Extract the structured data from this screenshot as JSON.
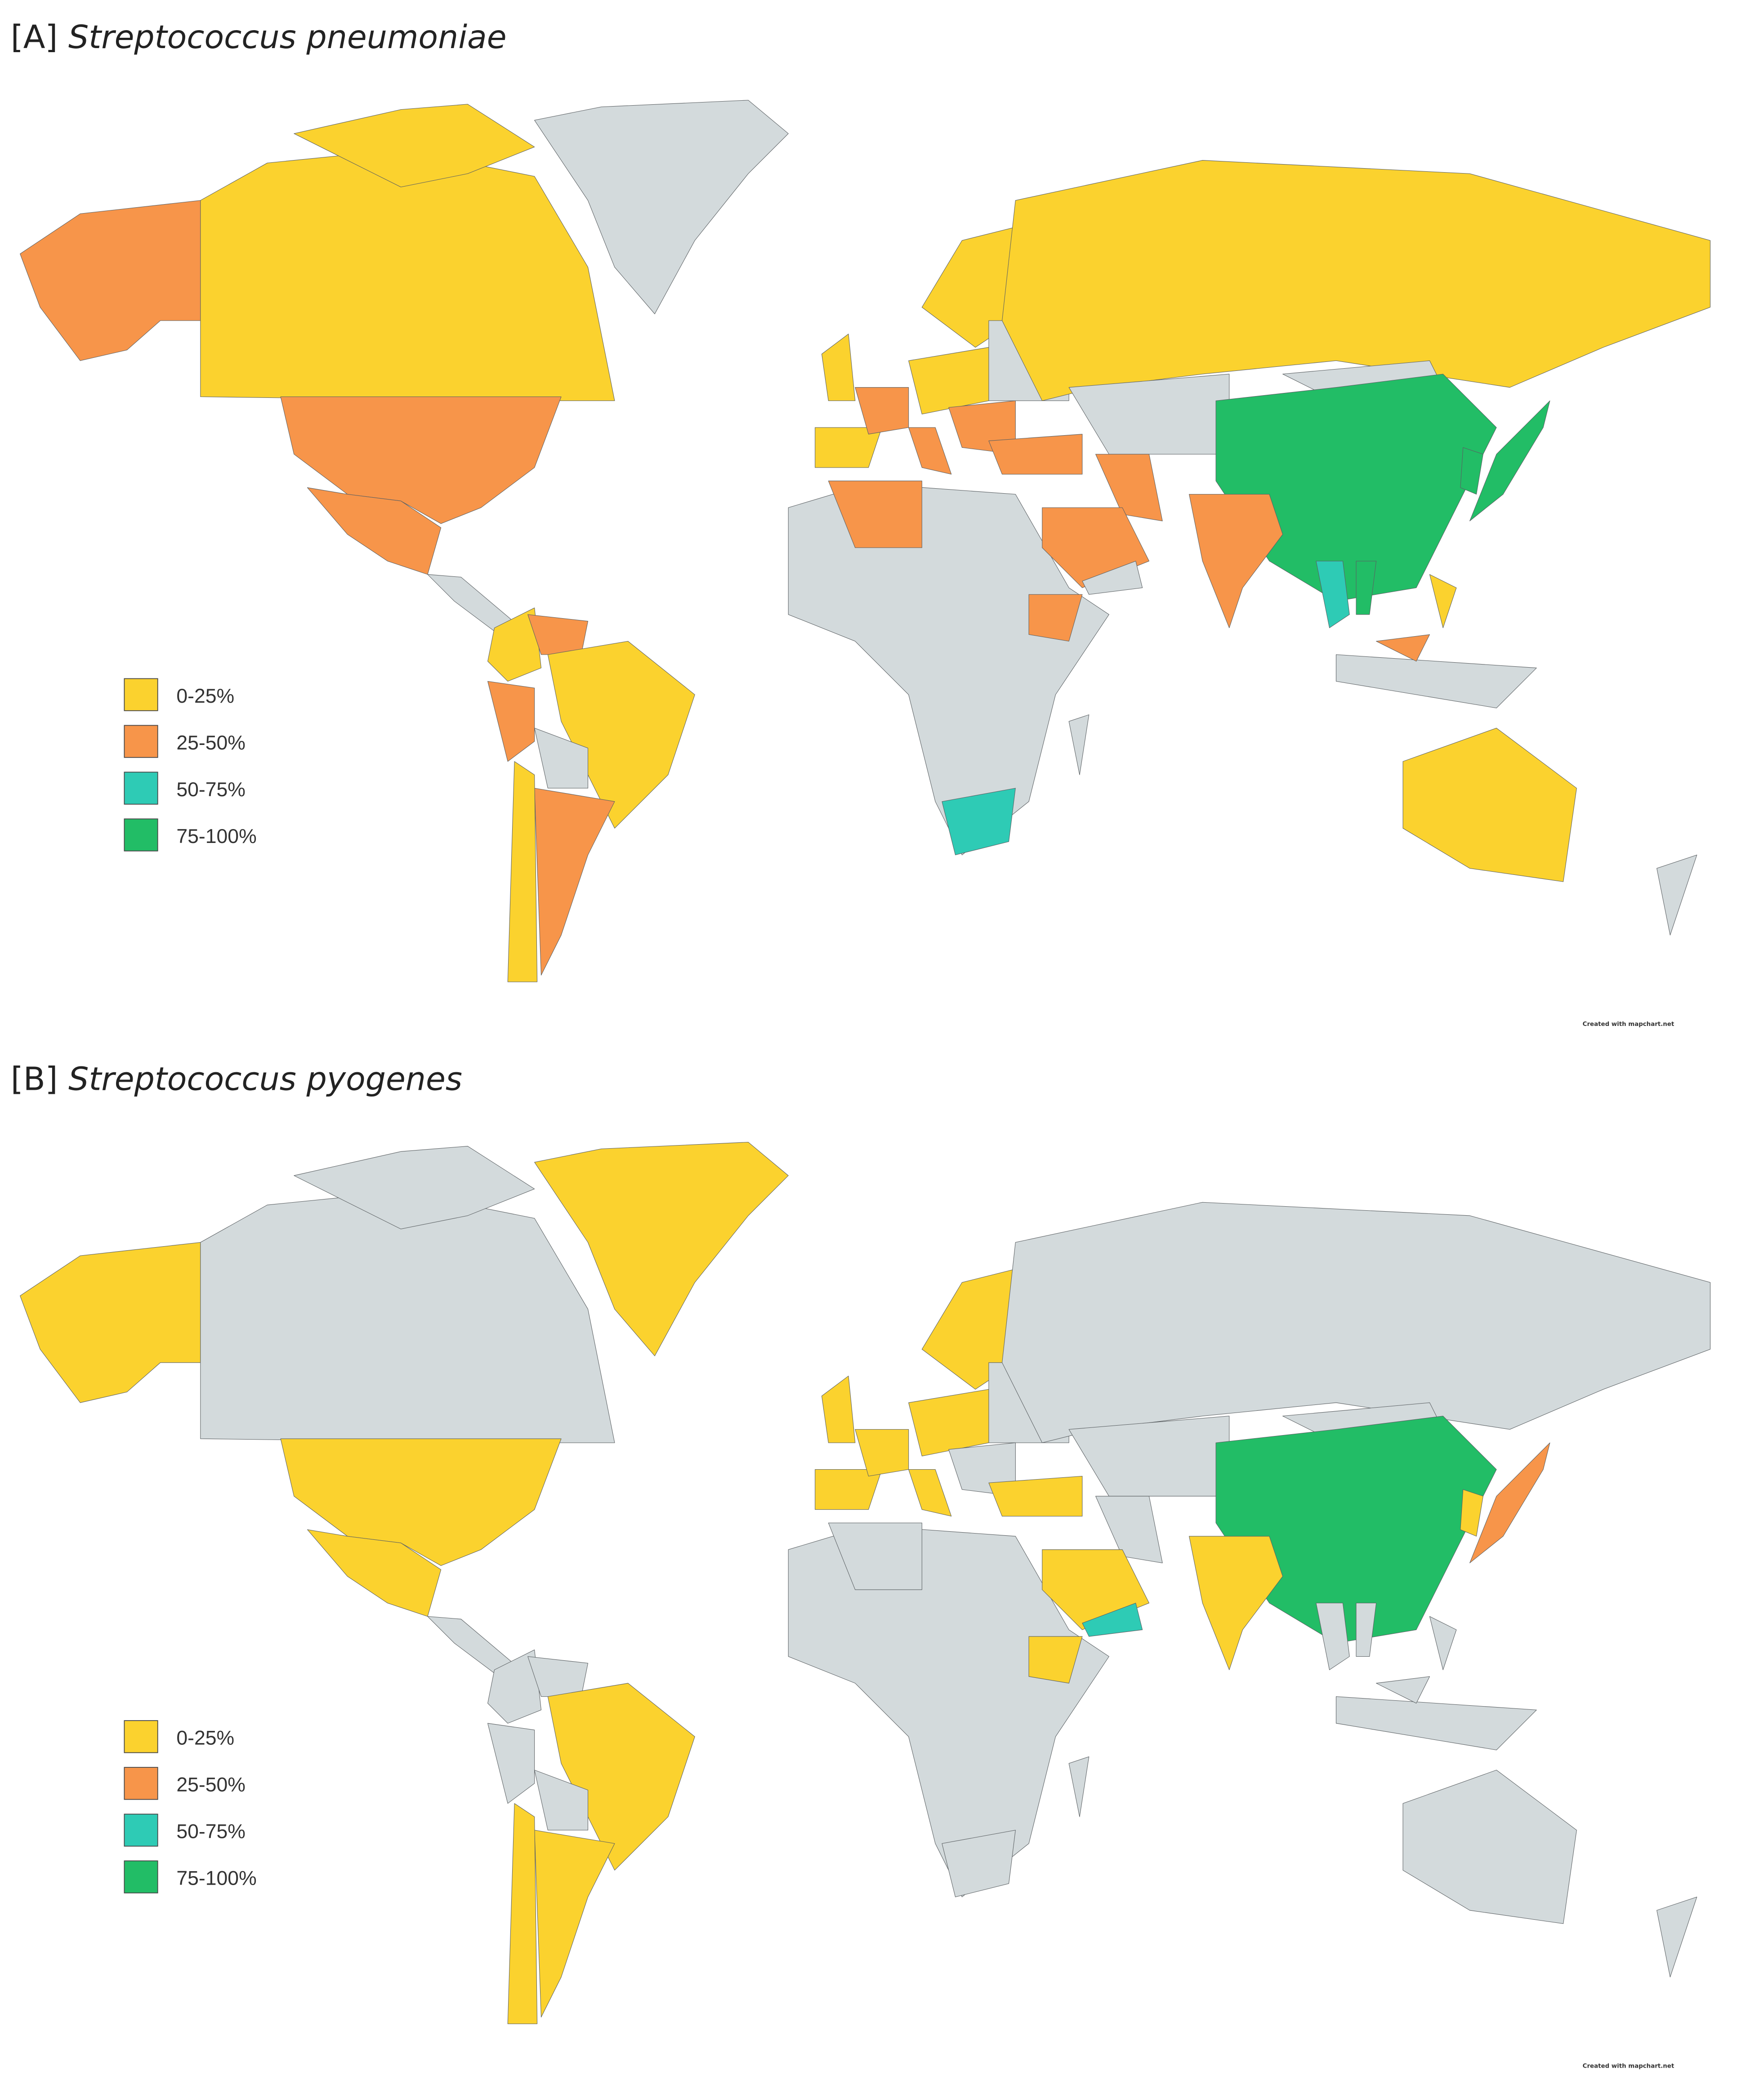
{
  "panels": [
    {
      "label": "[A]",
      "organism": "Streptococcus pneumoniae",
      "credit": "Created with mapchart.net"
    },
    {
      "label": "[B]",
      "organism": "Streptococcus pyogenes",
      "credit": "Created with mapchart.net"
    }
  ],
  "legend": [
    {
      "label": "0-25%",
      "color": "#fbd22e"
    },
    {
      "label": "25-50%",
      "color": "#f7954a"
    },
    {
      "label": "50-75%",
      "color": "#2ecbb5"
    },
    {
      "label": "75-100%",
      "color": "#22bd66"
    }
  ]
}
